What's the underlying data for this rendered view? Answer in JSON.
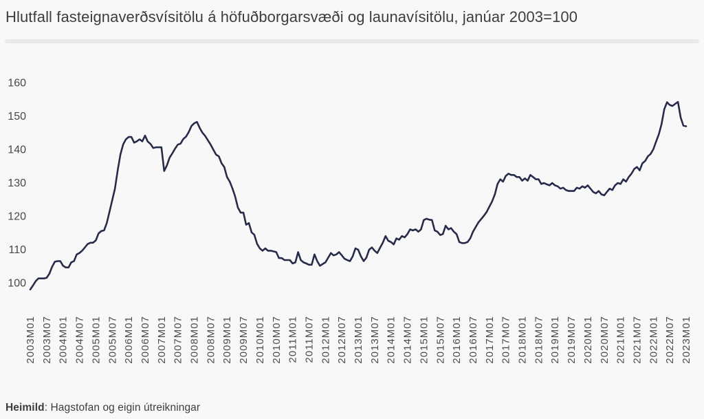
{
  "header": {
    "title": "Hlutfall fasteignaverðsvísitölu á höfuðborgarsvæði og launavísitölu, janúar 2003=100"
  },
  "footer": {
    "source_label": "Heimild",
    "source_rest": ": Hagstofan og eigin útreikningar"
  },
  "colors": {
    "background": "#f8f8f9",
    "divider": "#e9e9e9",
    "title_text": "#3d3d3d",
    "axis_text": "#4a4a4a",
    "line": "#262b49"
  },
  "chart_data": {
    "type": "line",
    "title": "Hlutfall fasteignaverðsvísitölu á höfuðborgarsvæði og launavísitölu, janúar 2003=100",
    "xlabel": "",
    "ylabel": "",
    "grid": false,
    "legend_position": "none",
    "line_color": "#262b49",
    "ylim": [
      100,
      160
    ],
    "y_ticks": [
      160,
      150,
      140,
      130,
      120,
      110,
      100
    ],
    "x_frequency": "monthly",
    "x_start": "2003M01",
    "x_end": "2023M01",
    "x_tick_labels": [
      "2003M01",
      "2003M07",
      "2004M01",
      "2004M07",
      "2005M01",
      "2005M07",
      "2006M01",
      "2006M07",
      "2007M01",
      "2007M07",
      "2008M01",
      "2008M07",
      "2009M01",
      "2009M07",
      "2010M01",
      "2010M07",
      "2011M01",
      "2011M07",
      "2012M01",
      "2012M07",
      "2013M01",
      "2013M07",
      "2014M01",
      "2014M07",
      "2015M01",
      "2015M07",
      "2016M01",
      "2016M07",
      "2017M01",
      "2017M07",
      "2018M01",
      "2018M07",
      "2019M01",
      "2019M07",
      "2020M01",
      "2020M07",
      "2021M01",
      "2021M07",
      "2022M01",
      "2022M07",
      "2023M01"
    ],
    "x_tick_interval_months": 6,
    "values": [
      98.0,
      99.2,
      100.5,
      101.3,
      101.3,
      101.3,
      101.5,
      102.7,
      104.8,
      106.3,
      106.5,
      106.5,
      105.1,
      104.6,
      104.6,
      106.1,
      106.5,
      108.5,
      108.9,
      109.6,
      110.6,
      111.6,
      112.0,
      112.0,
      112.7,
      114.8,
      115.5,
      115.7,
      117.9,
      121.3,
      124.8,
      128.2,
      133.7,
      138.5,
      141.5,
      143.0,
      143.7,
      143.7,
      142.0,
      142.4,
      143.0,
      142.4,
      144.1,
      142.3,
      141.6,
      140.4,
      140.6,
      140.6,
      140.6,
      133.5,
      135.2,
      137.5,
      138.8,
      140.2,
      141.4,
      141.7,
      143.1,
      143.8,
      145.2,
      147.0,
      147.8,
      148.2,
      146.4,
      145.0,
      144.0,
      142.7,
      141.4,
      139.9,
      138.4,
      137.9,
      135.8,
      134.7,
      131.7,
      130.3,
      128.2,
      125.8,
      122.5,
      121.0,
      121.0,
      117.4,
      117.9,
      115.1,
      114.4,
      111.7,
      110.3,
      109.6,
      110.3,
      109.6,
      109.6,
      109.4,
      109.2,
      107.4,
      107.4,
      106.8,
      106.8,
      106.8,
      105.8,
      106.1,
      109.2,
      106.8,
      106.1,
      105.8,
      105.4,
      105.4,
      108.5,
      106.5,
      105.1,
      105.6,
      106.1,
      107.5,
      108.9,
      108.2,
      108.5,
      109.2,
      108.2,
      107.2,
      106.8,
      106.5,
      107.9,
      110.3,
      109.9,
      107.9,
      106.5,
      107.5,
      109.9,
      110.6,
      109.6,
      108.9,
      110.5,
      112.0,
      114.0,
      112.6,
      112.2,
      111.5,
      113.3,
      112.9,
      114.0,
      113.6,
      114.6,
      116.0,
      115.7,
      116.0,
      115.3,
      116.0,
      118.8,
      119.2,
      118.9,
      118.8,
      115.7,
      115.3,
      114.3,
      114.6,
      117.1,
      116.0,
      116.4,
      115.3,
      114.6,
      112.2,
      111.9,
      111.9,
      112.2,
      113.3,
      115.3,
      116.7,
      118.1,
      119.1,
      120.1,
      121.2,
      122.8,
      124.4,
      126.5,
      129.6,
      131.0,
      130.3,
      132.0,
      132.7,
      132.3,
      132.3,
      131.7,
      131.7,
      130.6,
      131.3,
      130.6,
      132.3,
      131.7,
      131.0,
      131.0,
      129.6,
      129.9,
      129.5,
      129.2,
      129.9,
      129.2,
      128.9,
      128.2,
      128.5,
      127.8,
      127.5,
      127.5,
      127.5,
      128.5,
      128.2,
      128.9,
      128.5,
      129.2,
      128.2,
      127.2,
      126.8,
      127.5,
      126.5,
      126.2,
      127.2,
      128.2,
      127.8,
      129.2,
      129.9,
      129.6,
      131.0,
      130.3,
      131.7,
      132.7,
      134.1,
      134.7,
      133.7,
      135.8,
      136.5,
      137.9,
      138.6,
      140.0,
      142.3,
      144.5,
      147.5,
      152.0,
      154.1,
      153.3,
      153.0,
      153.6,
      154.2,
      149.5,
      147.1,
      146.9
    ]
  }
}
